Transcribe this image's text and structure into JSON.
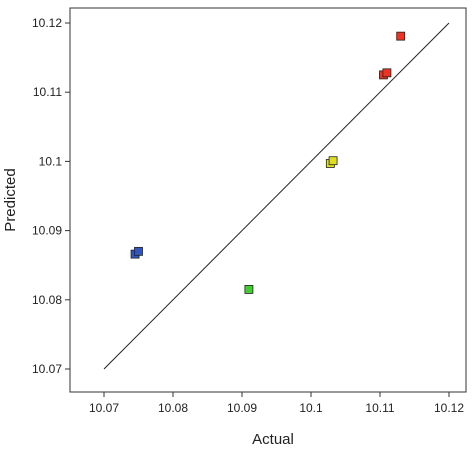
{
  "chart_data": {
    "type": "scatter",
    "title": "",
    "xlabel": "Actual",
    "ylabel": "Predicted",
    "xlim": [
      10.07,
      10.12
    ],
    "ylim": [
      10.07,
      10.12
    ],
    "x_ticks": [
      "10.07",
      "10.08",
      "10.09",
      "10.1",
      "10.11",
      "10.12"
    ],
    "y_ticks": [
      "10.07",
      "10.08",
      "10.09",
      "10.1",
      "10.11",
      "10.12"
    ],
    "reference_line": {
      "from": [
        10.07,
        10.07
      ],
      "to": [
        10.12,
        10.12
      ]
    },
    "grid": false,
    "legend": "none",
    "marker_shape": "square",
    "points": [
      {
        "x": 10.0745,
        "y": 10.0866,
        "color": "#3355bb"
      },
      {
        "x": 10.075,
        "y": 10.087,
        "color": "#3355bb"
      },
      {
        "x": 10.091,
        "y": 10.0815,
        "color": "#44cc33"
      },
      {
        "x": 10.1028,
        "y": 10.0997,
        "color": "#dddd22"
      },
      {
        "x": 10.1032,
        "y": 10.1001,
        "color": "#dddd22"
      },
      {
        "x": 10.1105,
        "y": 10.1125,
        "color": "#ee3322"
      },
      {
        "x": 10.111,
        "y": 10.1128,
        "color": "#ee3322"
      },
      {
        "x": 10.113,
        "y": 10.1181,
        "color": "#ee3322"
      }
    ]
  }
}
